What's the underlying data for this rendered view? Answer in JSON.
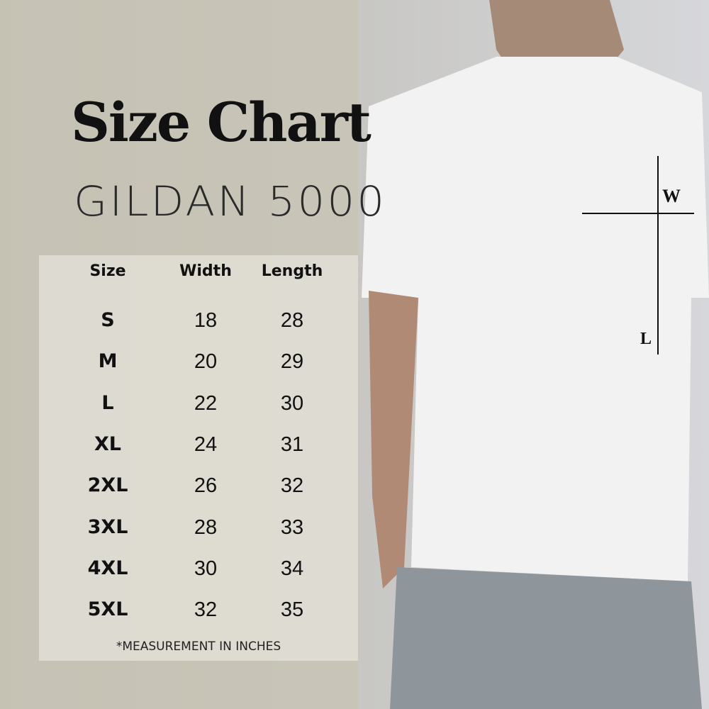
{
  "header": {
    "title": "Size Chart",
    "subtitle": "GILDAN 5000"
  },
  "table": {
    "columns": [
      "Size",
      "Width",
      "Length"
    ],
    "rows": [
      [
        "S",
        "18",
        "28"
      ],
      [
        "M",
        "20",
        "29"
      ],
      [
        "L",
        "22",
        "30"
      ],
      [
        "XL",
        "24",
        "31"
      ],
      [
        "2XL",
        "26",
        "32"
      ],
      [
        "3XL",
        "28",
        "33"
      ],
      [
        "4XL",
        "30",
        "34"
      ],
      [
        "5XL",
        "32",
        "35"
      ]
    ]
  },
  "note": "*MEASUREMENT IN INCHES",
  "diagram": {
    "width_label": "W",
    "length_label": "L"
  }
}
